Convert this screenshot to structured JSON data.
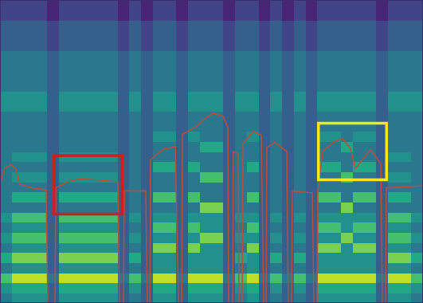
{
  "chart_data": {
    "type": "heatmap",
    "xlim": [
      0,
      36
    ],
    "ylim": [
      0,
      30
    ],
    "tick_labels": false,
    "zlim": [
      0,
      10
    ],
    "z": [
      [
        4,
        5,
        7,
        4,
        6,
        4,
        5,
        4,
        5,
        4,
        4,
        4,
        4,
        4,
        4,
        4,
        4,
        4,
        4,
        5,
        5,
        4,
        4,
        4,
        4,
        3,
        3,
        3,
        2,
        2
      ],
      [
        5,
        6,
        9,
        5,
        8,
        5,
        7,
        5,
        7,
        4,
        6,
        4,
        5,
        4,
        5,
        4,
        4,
        4,
        4,
        5,
        5,
        4,
        4,
        4,
        4,
        3,
        3,
        3,
        2,
        2
      ],
      [
        5,
        6,
        9,
        5,
        8,
        5,
        7,
        5,
        7,
        4,
        6,
        4,
        5,
        4,
        5,
        4,
        4,
        4,
        4,
        5,
        5,
        4,
        4,
        4,
        4,
        3,
        3,
        3,
        2,
        2
      ],
      [
        5,
        6,
        9,
        5,
        8,
        5,
        7,
        5,
        7,
        4,
        6,
        4,
        5,
        4,
        5,
        4,
        4,
        4,
        4,
        5,
        5,
        4,
        4,
        4,
        4,
        3,
        3,
        3,
        2,
        2
      ],
      [
        3,
        3,
        4,
        3,
        3,
        3,
        3,
        3,
        3,
        3,
        3,
        3,
        3,
        3,
        3,
        3,
        3,
        3,
        3,
        3,
        3,
        3,
        3,
        3,
        3,
        2,
        2,
        2,
        1,
        1
      ],
      [
        5,
        6,
        9,
        5,
        8,
        5,
        7,
        5,
        7,
        4,
        6,
        4,
        5,
        4,
        5,
        4,
        4,
        4,
        4,
        5,
        5,
        4,
        4,
        4,
        4,
        3,
        3,
        3,
        2,
        2
      ],
      [
        5,
        6,
        9,
        5,
        8,
        5,
        7,
        5,
        7,
        4,
        6,
        4,
        5,
        4,
        5,
        4,
        4,
        4,
        4,
        5,
        5,
        4,
        4,
        4,
        4,
        3,
        3,
        3,
        2,
        2
      ],
      [
        5,
        6,
        9,
        5,
        8,
        5,
        7,
        5,
        7,
        4,
        6,
        4,
        5,
        4,
        5,
        4,
        4,
        4,
        4,
        5,
        5,
        4,
        4,
        4,
        4,
        3,
        3,
        3,
        2,
        2
      ],
      [
        5,
        6,
        9,
        5,
        8,
        5,
        7,
        5,
        7,
        4,
        6,
        4,
        5,
        4,
        5,
        4,
        4,
        4,
        4,
        5,
        5,
        4,
        4,
        4,
        4,
        3,
        3,
        3,
        2,
        2
      ],
      [
        5,
        6,
        9,
        5,
        8,
        5,
        7,
        5,
        7,
        4,
        6,
        4,
        5,
        4,
        5,
        4,
        4,
        4,
        4,
        5,
        5,
        4,
        4,
        4,
        4,
        3,
        3,
        3,
        2,
        2
      ],
      [
        3,
        3,
        4,
        3,
        3,
        3,
        3,
        3,
        3,
        3,
        3,
        3,
        3,
        3,
        3,
        3,
        3,
        3,
        3,
        3,
        3,
        3,
        3,
        3,
        3,
        2,
        2,
        2,
        1,
        1
      ],
      [
        4,
        5,
        7,
        4,
        6,
        4,
        5,
        4,
        5,
        4,
        4,
        4,
        4,
        4,
        4,
        4,
        4,
        4,
        4,
        5,
        5,
        4,
        4,
        4,
        4,
        3,
        3,
        3,
        2,
        2
      ],
      [
        3,
        3,
        4,
        3,
        3,
        3,
        3,
        3,
        3,
        3,
        3,
        3,
        3,
        3,
        3,
        3,
        3,
        3,
        3,
        3,
        3,
        3,
        3,
        3,
        3,
        2,
        2,
        2,
        1,
        1
      ],
      [
        5,
        6,
        9,
        5,
        5,
        8,
        5,
        7,
        5,
        4,
        7,
        4,
        4,
        6,
        4,
        4,
        5,
        4,
        4,
        5,
        5,
        4,
        4,
        4,
        4,
        3,
        3,
        3,
        2,
        2
      ],
      [
        5,
        6,
        9,
        5,
        5,
        8,
        5,
        7,
        5,
        4,
        7,
        4,
        4,
        6,
        4,
        4,
        5,
        4,
        4,
        5,
        5,
        4,
        4,
        4,
        4,
        3,
        3,
        3,
        2,
        2
      ],
      [
        3,
        3,
        4,
        3,
        3,
        3,
        3,
        3,
        3,
        3,
        3,
        3,
        3,
        3,
        3,
        3,
        3,
        3,
        3,
        3,
        3,
        3,
        3,
        3,
        3,
        2,
        2,
        2,
        1,
        1
      ],
      [
        5,
        6,
        9,
        5,
        5,
        8,
        5,
        7,
        5,
        4,
        7,
        4,
        4,
        6,
        4,
        4,
        5,
        4,
        4,
        5,
        5,
        4,
        4,
        4,
        4,
        3,
        3,
        3,
        2,
        2
      ],
      [
        5,
        6,
        9,
        5,
        5,
        5,
        8,
        5,
        5,
        8,
        4,
        4,
        7,
        4,
        4,
        6,
        4,
        4,
        4,
        5,
        5,
        4,
        4,
        4,
        4,
        3,
        3,
        3,
        2,
        2
      ],
      [
        5,
        6,
        9,
        5,
        5,
        5,
        8,
        5,
        5,
        8,
        4,
        4,
        7,
        4,
        4,
        6,
        4,
        4,
        4,
        5,
        5,
        4,
        4,
        4,
        4,
        3,
        3,
        3,
        2,
        2
      ],
      [
        3,
        3,
        4,
        3,
        3,
        3,
        3,
        3,
        3,
        3,
        3,
        3,
        3,
        3,
        3,
        3,
        3,
        3,
        3,
        3,
        3,
        3,
        3,
        3,
        3,
        2,
        2,
        2,
        1,
        1
      ],
      [
        4,
        5,
        7,
        4,
        6,
        4,
        5,
        4,
        5,
        4,
        4,
        4,
        4,
        4,
        4,
        4,
        4,
        4,
        4,
        5,
        5,
        4,
        4,
        4,
        4,
        3,
        3,
        3,
        2,
        2
      ],
      [
        5,
        6,
        9,
        5,
        5,
        8,
        5,
        7,
        5,
        4,
        7,
        4,
        4,
        6,
        4,
        4,
        5,
        4,
        4,
        5,
        5,
        4,
        4,
        4,
        4,
        3,
        3,
        3,
        2,
        2
      ],
      [
        3,
        3,
        4,
        3,
        3,
        3,
        3,
        3,
        3,
        3,
        3,
        3,
        3,
        3,
        3,
        3,
        3,
        3,
        3,
        3,
        3,
        3,
        3,
        3,
        3,
        2,
        2,
        2,
        1,
        1
      ],
      [
        4,
        5,
        7,
        4,
        6,
        4,
        5,
        4,
        5,
        4,
        4,
        4,
        4,
        4,
        4,
        4,
        4,
        4,
        4,
        5,
        5,
        4,
        4,
        4,
        4,
        3,
        3,
        3,
        2,
        2
      ],
      [
        3,
        3,
        4,
        3,
        3,
        3,
        3,
        3,
        3,
        3,
        3,
        3,
        3,
        3,
        3,
        3,
        3,
        3,
        3,
        3,
        3,
        3,
        3,
        3,
        3,
        2,
        2,
        2,
        1,
        1
      ],
      [
        4,
        5,
        7,
        4,
        6,
        4,
        5,
        4,
        5,
        4,
        4,
        4,
        4,
        4,
        4,
        4,
        4,
        4,
        4,
        5,
        5,
        4,
        4,
        4,
        4,
        3,
        3,
        3,
        2,
        2
      ],
      [
        3,
        3,
        4,
        3,
        3,
        3,
        3,
        3,
        3,
        3,
        3,
        3,
        3,
        3,
        3,
        3,
        3,
        3,
        3,
        3,
        3,
        3,
        3,
        3,
        3,
        2,
        2,
        2,
        1,
        1
      ],
      [
        5,
        6,
        9,
        5,
        5,
        8,
        5,
        7,
        5,
        4,
        7,
        4,
        4,
        6,
        4,
        4,
        5,
        4,
        4,
        5,
        5,
        4,
        4,
        4,
        4,
        3,
        3,
        3,
        2,
        2
      ],
      [
        5,
        6,
        9,
        5,
        5,
        8,
        5,
        7,
        5,
        4,
        7,
        4,
        4,
        6,
        4,
        4,
        5,
        4,
        4,
        5,
        5,
        4,
        4,
        4,
        4,
        3,
        3,
        3,
        2,
        2
      ],
      [
        5,
        6,
        9,
        5,
        5,
        5,
        8,
        5,
        5,
        8,
        4,
        4,
        7,
        4,
        4,
        6,
        4,
        4,
        4,
        5,
        5,
        4,
        4,
        4,
        4,
        3,
        3,
        3,
        2,
        2
      ],
      [
        5,
        6,
        9,
        5,
        5,
        8,
        5,
        7,
        5,
        4,
        7,
        4,
        4,
        6,
        4,
        4,
        5,
        4,
        4,
        5,
        5,
        4,
        4,
        4,
        4,
        3,
        3,
        3,
        2,
        2
      ],
      [
        5,
        6,
        9,
        5,
        5,
        8,
        5,
        7,
        5,
        4,
        7,
        4,
        4,
        6,
        4,
        4,
        5,
        4,
        4,
        5,
        5,
        4,
        4,
        4,
        4,
        3,
        3,
        3,
        2,
        2
      ],
      [
        3,
        3,
        4,
        3,
        3,
        3,
        3,
        3,
        3,
        3,
        3,
        3,
        3,
        3,
        3,
        3,
        3,
        3,
        3,
        3,
        3,
        3,
        3,
        3,
        3,
        2,
        2,
        2,
        1,
        1
      ],
      [
        5,
        6,
        9,
        5,
        8,
        5,
        7,
        5,
        7,
        4,
        6,
        4,
        5,
        4,
        5,
        4,
        4,
        4,
        4,
        5,
        5,
        4,
        4,
        4,
        4,
        3,
        3,
        3,
        2,
        2
      ],
      [
        5,
        6,
        9,
        5,
        8,
        5,
        7,
        5,
        7,
        4,
        6,
        4,
        5,
        4,
        5,
        4,
        4,
        4,
        4,
        5,
        5,
        4,
        4,
        4,
        4,
        3,
        3,
        3,
        2,
        2
      ],
      [
        4,
        5,
        7,
        4,
        6,
        4,
        5,
        4,
        5,
        4,
        4,
        4,
        4,
        4,
        4,
        4,
        4,
        4,
        4,
        5,
        5,
        4,
        4,
        4,
        4,
        3,
        3,
        3,
        2,
        2
      ]
    ],
    "series": [
      {
        "type": "line",
        "color": "#b5503f",
        "line_style": "solid",
        "x": [
          0,
          0.41,
          0.95,
          1.36,
          1.63,
          2.71,
          3.93,
          4.07,
          4.68,
          4.75,
          5.76,
          6.78,
          8.14,
          10.03,
          10.17,
          10.51,
          10.58,
          12.41,
          12.54,
          12.75,
          12.81,
          13.9,
          14.92,
          15.19,
          15.46,
          15.53,
          16.61,
          17.49,
          18.17,
          18.98,
          19.39,
          19.46,
          19.8,
          19.86,
          20.27,
          20.34,
          20.61,
          20.68,
          21.56,
          22.24,
          22.44,
          22.64,
          22.71,
          23.39,
          24.41,
          24.54,
          24.81,
          24.88,
          26.58,
          26.71,
          26.98,
          27.05,
          27.46,
          28.34,
          29.15,
          29.83,
          30.24,
          30.85,
          31.53,
          32.41,
          32.54,
          32.81,
          32.88,
          34.58,
          36
        ],
        "values": [
          11.7,
          13.4,
          13.7,
          13.3,
          11.8,
          11.4,
          11.2,
          0,
          0,
          11.4,
          12.0,
          12.3,
          12.2,
          12.0,
          0,
          0,
          11.1,
          11.1,
          0,
          0,
          14.2,
          15.2,
          15.5,
          0,
          0,
          16.7,
          17.4,
          18.3,
          18.8,
          18.5,
          17.4,
          0,
          0,
          15.0,
          14.8,
          0,
          0,
          15.8,
          17.0,
          16.6,
          0,
          0,
          15.4,
          15.9,
          15.0,
          0,
          0,
          11.1,
          10.9,
          0,
          0,
          11.1,
          15.0,
          15.9,
          16.3,
          15.3,
          13.3,
          14.2,
          15.2,
          13.8,
          0,
          0,
          11.4,
          11.5,
          11.6
        ]
      }
    ],
    "annotations": [
      {
        "type": "rect",
        "color": "#cf1d24",
        "x": [
          4.6,
          10.4
        ],
        "y": [
          8.8,
          14.6
        ]
      },
      {
        "type": "rect",
        "color": "#f4e81c",
        "x": [
          27.1,
          32.9
        ],
        "y": [
          12.2,
          17.8
        ]
      }
    ]
  }
}
